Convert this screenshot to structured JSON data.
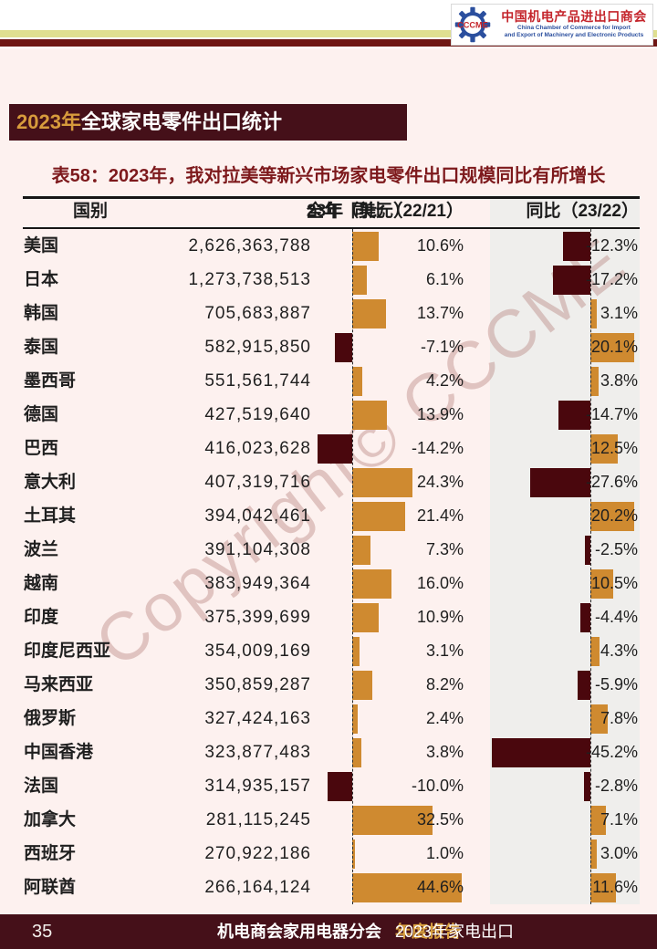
{
  "logo": {
    "abbr": "CCCME",
    "title_cn": "中国机电产品进出口商会",
    "subtitle_en_line1": "China Chamber of Commerce for Import",
    "subtitle_en_line2": "and Export of Machinery and Electronic Products"
  },
  "title": {
    "year": "2023年",
    "rest": "全球家电零件出口统计"
  },
  "subtitle": "表58：2023年，我对拉美等新兴市场家电零件出口规模同比有所增长",
  "watermark": "Copyright© CCCME",
  "table": {
    "col1": "国别",
    "col2_red": "23年",
    "col2_rest": "全年（美元）",
    "col3": "同比（22/21）",
    "col4": "同比（23/22）",
    "rows": [
      {
        "country": "美国",
        "value": "2,626,363,788",
        "yoy_22_21": "10.6%",
        "yoy_23_22": "-12.3%"
      },
      {
        "country": "日本",
        "value": "1,273,738,513",
        "yoy_22_21": "6.1%",
        "yoy_23_22": "-17.2%"
      },
      {
        "country": "韩国",
        "value": "705,683,887",
        "yoy_22_21": "13.7%",
        "yoy_23_22": "3.1%"
      },
      {
        "country": "泰国",
        "value": "582,915,850",
        "yoy_22_21": "-7.1%",
        "yoy_23_22": "20.1%"
      },
      {
        "country": "墨西哥",
        "value": "551,561,744",
        "yoy_22_21": "4.2%",
        "yoy_23_22": "3.8%"
      },
      {
        "country": "德国",
        "value": "427,519,640",
        "yoy_22_21": "13.9%",
        "yoy_23_22": "-14.7%"
      },
      {
        "country": "巴西",
        "value": "416,023,628",
        "yoy_22_21": "-14.2%",
        "yoy_23_22": "12.5%"
      },
      {
        "country": "意大利",
        "value": "407,319,716",
        "yoy_22_21": "24.3%",
        "yoy_23_22": "-27.6%"
      },
      {
        "country": "土耳其",
        "value": "394,042,461",
        "yoy_22_21": "21.4%",
        "yoy_23_22": "20.2%"
      },
      {
        "country": "波兰",
        "value": "391,104,308",
        "yoy_22_21": "7.3%",
        "yoy_23_22": "-2.5%"
      },
      {
        "country": "越南",
        "value": "383,949,364",
        "yoy_22_21": "16.0%",
        "yoy_23_22": "10.5%"
      },
      {
        "country": "印度",
        "value": "375,399,699",
        "yoy_22_21": "10.9%",
        "yoy_23_22": "-4.4%"
      },
      {
        "country": "印度尼西亚",
        "value": "354,009,169",
        "yoy_22_21": "3.1%",
        "yoy_23_22": "4.3%"
      },
      {
        "country": "马来西亚",
        "value": "350,859,287",
        "yoy_22_21": "8.2%",
        "yoy_23_22": "-5.9%"
      },
      {
        "country": "俄罗斯",
        "value": "327,424,163",
        "yoy_22_21": "2.4%",
        "yoy_23_22": "7.8%"
      },
      {
        "country": "中国香港",
        "value": "323,877,483",
        "yoy_22_21": "3.8%",
        "yoy_23_22": "-45.2%"
      },
      {
        "country": "法国",
        "value": "314,935,157",
        "yoy_22_21": "-10.0%",
        "yoy_23_22": "-2.8%"
      },
      {
        "country": "加拿大",
        "value": "281,115,245",
        "yoy_22_21": "32.5%",
        "yoy_23_22": "7.1%"
      },
      {
        "country": "西班牙",
        "value": "270,922,186",
        "yoy_22_21": "1.0%",
        "yoy_23_22": "3.0%"
      },
      {
        "country": "阿联酋",
        "value": "266,164,124",
        "yoy_22_21": "44.6%",
        "yoy_23_22": "11.6%"
      }
    ]
  },
  "footer": {
    "page": "35",
    "center": "机电商会家用电器分会",
    "right_plain": "2023年家电出口",
    "right_gold": "年度报告"
  },
  "colors": {
    "bar_positive": "#cf8a30",
    "bar_negative": "#4a070d",
    "dark_maroon_bg": "#451019",
    "accent_gold": "#d79b3c",
    "subtitle_red": "#7d191c",
    "gray_band": "#efeeec",
    "page_pink": "#fdf1ef",
    "stripe_yellow": "#dfdf90",
    "stripe_maroon": "#6f1613",
    "logo_red": "#c4242b",
    "logo_blue": "#2b4f9e"
  }
}
